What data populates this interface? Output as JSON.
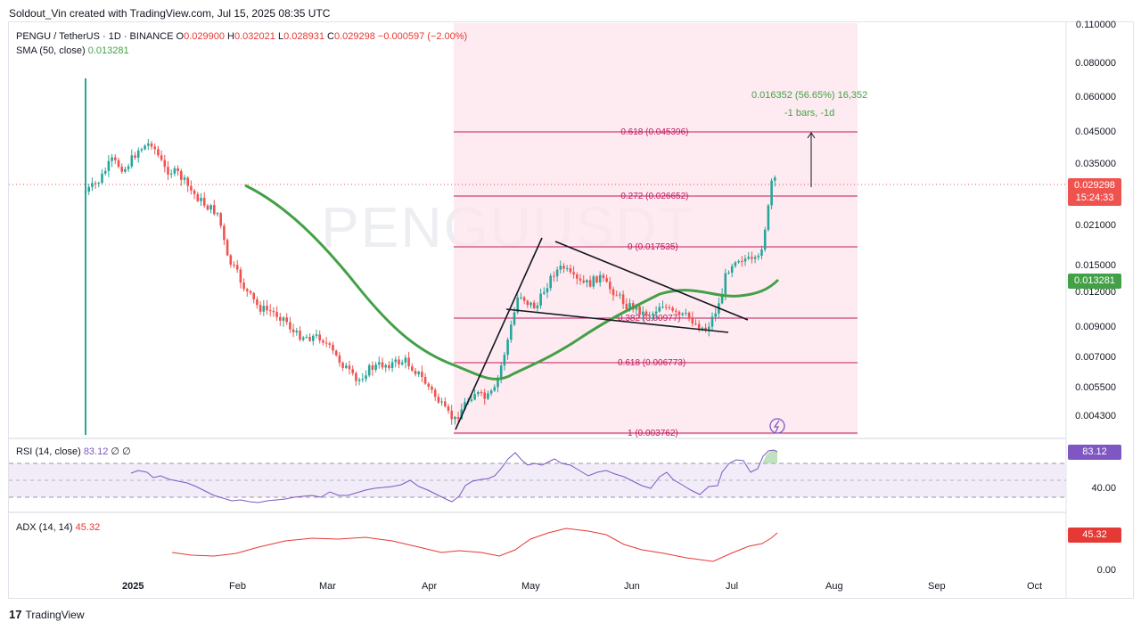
{
  "credit": "Soldout_Vin created with TradingView.com, Jul 15, 2025 08:35 UTC",
  "main_legend": {
    "symbol": "PENGU / TetherUS · 1D · BINANCE",
    "o_label": "O",
    "o": "0.029900",
    "h_label": "H",
    "h": "0.032021",
    "l_label": "L",
    "l": "0.028931",
    "c_label": "C",
    "c": "0.029298",
    "change": "−0.000597 (−2.00%)"
  },
  "sma_legend": {
    "label": "SMA (50, close)",
    "value": "0.013281"
  },
  "rsi_legend": {
    "label": "RSI (14, close)",
    "value": "83.12",
    "extra1": "∅",
    "extra2": "∅"
  },
  "adx_legend": {
    "label": "ADX (14, 14)",
    "value": "45.32"
  },
  "watermark": "PENGUUSDT",
  "price_axis": [
    "0.110000",
    "0.080000",
    "0.060000",
    "0.045000",
    "0.035000",
    "0.021000",
    "0.015000",
    "0.012000",
    "0.009000",
    "0.007000",
    "0.005500",
    "0.004300"
  ],
  "price_tags": {
    "current": "0.029298",
    "countdown": "15:24:33",
    "sma": "0.013281",
    "rsi": "83.12",
    "adx": "45.32"
  },
  "rsi_axis": [
    "40.00"
  ],
  "adx_axis": [
    "0.00"
  ],
  "time_axis": [
    "2025",
    "Feb",
    "Mar",
    "Apr",
    "May",
    "Jun",
    "Jul",
    "Aug",
    "Sep",
    "Oct"
  ],
  "fib_levels": [
    {
      "label": "-0.618 (0.045396)"
    },
    {
      "label": "-0.272 (0.026652)"
    },
    {
      "label": "0 (0.017535)"
    },
    {
      "label": "0.382 (0.00977)"
    },
    {
      "label": "0.618 (0.006773)"
    },
    {
      "label": "1 (0.003762)"
    }
  ],
  "measure": {
    "line1": "0.016352 (56.65%) 16,352",
    "line2": "-1 bars, -1d"
  },
  "footer": {
    "logo_mark": "17",
    "brand": "TradingView"
  },
  "colors": {
    "up": "#26a69a",
    "down": "#ef5350",
    "sma": "#43a047",
    "fib": "#c2185b",
    "fib_zone": "#fde4ec",
    "rsi": "#7e57c2",
    "adx": "#e53935"
  }
}
